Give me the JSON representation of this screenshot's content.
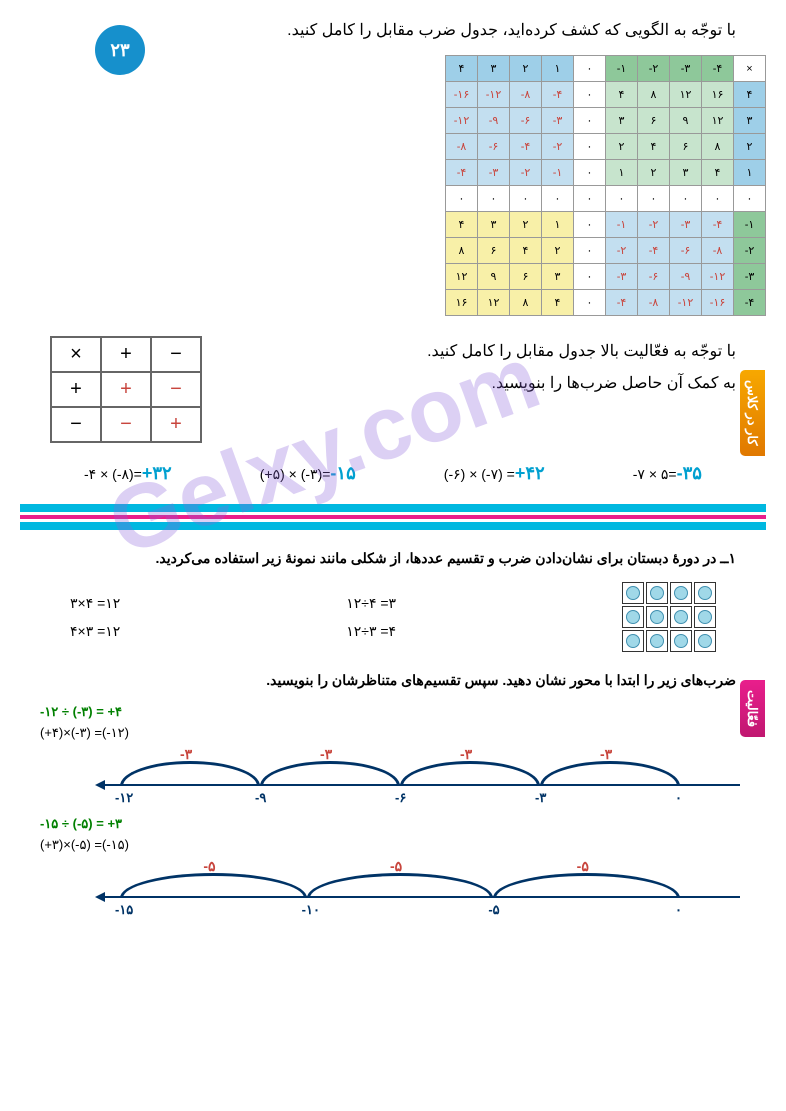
{
  "page_number": "۲۳",
  "instruction1": "با توجّه به الگویی که کشف کرده‌اید، جدول ضرب مقابل را کامل کنید.",
  "mult_table": {
    "col_headers": [
      "۴",
      "۳",
      "۲",
      "۱",
      "۰",
      "-۱",
      "-۲",
      "-۳",
      "-۴",
      "×"
    ],
    "row_headers": [
      "۴",
      "۳",
      "۲",
      "۱",
      "۰",
      "-۱",
      "-۲",
      "-۳",
      "-۴"
    ],
    "rows": [
      [
        "-۱۶",
        "-۱۲",
        "-۸",
        "-۴",
        "۰",
        "۴",
        "۸",
        "۱۲",
        "۱۶"
      ],
      [
        "-۱۲",
        "-۹",
        "-۶",
        "-۳",
        "۰",
        "۳",
        "۶",
        "۹",
        "۱۲"
      ],
      [
        "-۸",
        "-۶",
        "-۴",
        "-۲",
        "۰",
        "۲",
        "۴",
        "۶",
        "۸"
      ],
      [
        "-۴",
        "-۳",
        "-۲",
        "-۱",
        "۰",
        "۱",
        "۲",
        "۳",
        "۴"
      ],
      [
        "۰",
        "۰",
        "۰",
        "۰",
        "۰",
        "۰",
        "۰",
        "۰",
        "۰"
      ],
      [
        "۴",
        "۳",
        "۲",
        "۱",
        "۰",
        "-۱",
        "-۲",
        "-۳",
        "-۴"
      ],
      [
        "۸",
        "۶",
        "۴",
        "۲",
        "۰",
        "-۲",
        "-۴",
        "-۶",
        "-۸"
      ],
      [
        "۱۲",
        "۹",
        "۶",
        "۳",
        "۰",
        "-۳",
        "-۶",
        "-۹",
        "-۱۲"
      ],
      [
        "۱۶",
        "۱۲",
        "۸",
        "۴",
        "۰",
        "-۴",
        "-۸",
        "-۱۲",
        "-۱۶"
      ]
    ]
  },
  "side_tab1": "کار در کلاس",
  "side_tab2": "فعّالیت",
  "sign_section": {
    "text1": "با توجّه به فعّالیت بالا جدول مقابل را کامل کنید.",
    "text2": "به کمک آن حاصل ضرب‌ها را بنویسید.",
    "table": [
      [
        "×",
        "+",
        "−"
      ],
      [
        "+",
        "+",
        "−"
      ],
      [
        "−",
        "−",
        "+"
      ]
    ]
  },
  "mult_exercises": [
    {
      "expr": "-۴ × (-۸)=",
      "ans": "+۳۲"
    },
    {
      "expr": "(+۵) × (-۳)=",
      "ans": "-۱۵"
    },
    {
      "expr": "(-۶) × (-۷) =",
      "ans": "+۴۲"
    },
    {
      "expr": "-۷ × ۵=",
      "ans": "-۳۵"
    }
  ],
  "activity_intro": "۱ــ در دورهٔ دبستان برای نشان‌دادن ضرب و تقسیم عددها، از شکلی مانند نمونهٔ زیر استفاده می‌کردید.",
  "activity_eqs": {
    "left": [
      "۳×۴ =۱۲",
      "۴×۳ =۱۲"
    ],
    "right": [
      "۱۲÷۴ =۳",
      "۱۲÷۳ =۴"
    ]
  },
  "activity_text2": "ضرب‌های زیر را ابتدا با محور نشان دهید. سپس تقسیم‌های متناظرشان را بنویسید.",
  "numlines": [
    {
      "green": "-۱۲ ÷ (-۳) = +۴",
      "eq": "(+۴)×(-۳) =(-۱۲)",
      "arc_label": "-۳",
      "marks": [
        "-۱۲",
        "-۹",
        "-۶",
        "-۳",
        "۰"
      ]
    },
    {
      "green": "-۱۵ ÷ (-۵) = +۳",
      "eq": "(+۳)×(-۵) =(-۱۵)",
      "arc_label": "-۵",
      "marks": [
        "-۱۵",
        "-۱۰",
        "-۵",
        "۰"
      ]
    }
  ],
  "watermark": "Gelxy.com",
  "colors": {
    "page_circle": "#1690cc",
    "answer_blue": "#00a0d0",
    "red": "#c8453d",
    "green": "#008000",
    "navy": "#003366"
  }
}
